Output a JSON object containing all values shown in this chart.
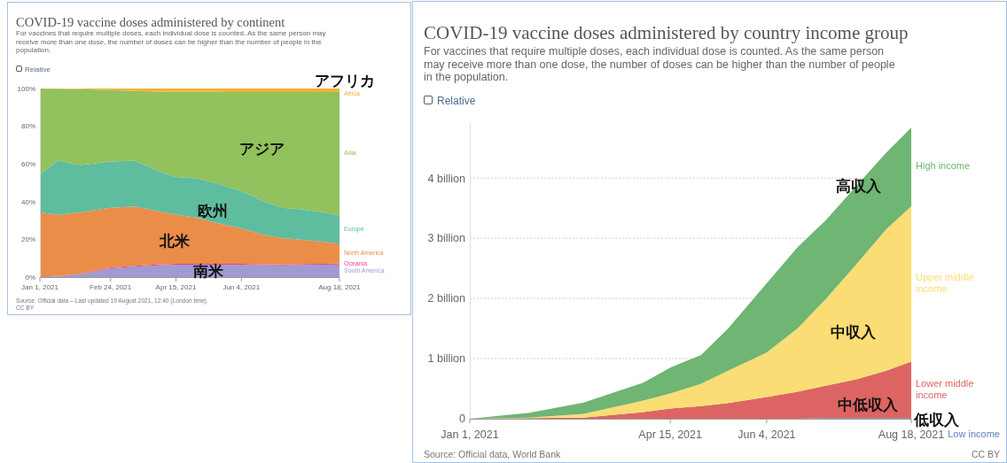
{
  "chart_data": [
    {
      "type": "area",
      "stacked": true,
      "title": "COVID-19 vaccine doses administered by continent",
      "subtitle": "For vaccines that require multiple doses, each individual dose is counted. As the same person may receive more than one dose, the number of doses can be higher than the number of people in the population.",
      "x": [
        "2021-01-01",
        "2021-01-15",
        "2021-02-01",
        "2021-02-24",
        "2021-03-15",
        "2021-04-01",
        "2021-04-15",
        "2021-05-01",
        "2021-05-15",
        "2021-06-04",
        "2021-06-20",
        "2021-07-05",
        "2021-07-20",
        "2021-08-05",
        "2021-08-18"
      ],
      "xlim": [
        "2021-01-01",
        "2021-08-18"
      ],
      "xticks": [
        {
          "value": "2021-01-01",
          "label": "Jan 1, 2021"
        },
        {
          "value": "2021-02-24",
          "label": "Feb 24, 2021"
        },
        {
          "value": "2021-04-15",
          "label": "Apr 15, 2021"
        },
        {
          "value": "2021-06-04",
          "label": "Jun 4, 2021"
        },
        {
          "value": "2021-08-18",
          "label": "Aug 18, 2021"
        }
      ],
      "ylim": [
        0,
        100
      ],
      "yticks": [
        {
          "value": 0,
          "label": "0%"
        },
        {
          "value": 20,
          "label": "20%"
        },
        {
          "value": 40,
          "label": "40%"
        },
        {
          "value": 60,
          "label": "60%"
        },
        {
          "value": 80,
          "label": "80%"
        },
        {
          "value": 100,
          "label": "100%"
        }
      ],
      "series": [
        {
          "name": "South America",
          "color": "#9f9ad1",
          "values": [
            0,
            0.3,
            1.5,
            4.7,
            5.5,
            6.2,
            6.6,
            6.6,
            6.5,
            6.5,
            6.3,
            6.2,
            6.4,
            6.6,
            6.7
          ]
        },
        {
          "name": "Oceania",
          "color": "#e5418e",
          "values": [
            0.3,
            0.3,
            0.3,
            0.5,
            0.5,
            0.5,
            0.5,
            0.5,
            0.5,
            0.5,
            0.5,
            0.5,
            0.5,
            0.5,
            0.5
          ]
        },
        {
          "name": "North America",
          "color": "#e98d49",
          "values": [
            34.1,
            32.4,
            32.6,
            31.5,
            31.5,
            28.3,
            26,
            24.5,
            21.9,
            18.8,
            15.9,
            13.9,
            12.9,
            11.7,
            10.5
          ]
        },
        {
          "name": "Europe",
          "color": "#5ebc9f",
          "values": [
            20.3,
            28.7,
            25,
            24.6,
            24.2,
            21.3,
            20,
            20.7,
            21.1,
            19.8,
            17.9,
            16.1,
            16.1,
            15.6,
            15.1
          ]
        },
        {
          "name": "Asia",
          "color": "#92c15d",
          "values": [
            45.3,
            38.2,
            40.3,
            37.9,
            37,
            42.1,
            45.1,
            45.9,
            48.2,
            52.5,
            57.5,
            61.4,
            62.2,
            63.7,
            65.3
          ]
        },
        {
          "name": "Africa",
          "color": "#f2b134",
          "values": [
            0,
            0.1,
            0.3,
            0.8,
            1.3,
            1.6,
            1.8,
            1.8,
            1.8,
            1.9,
            1.9,
            1.9,
            1.9,
            1.9,
            1.9
          ]
        }
      ],
      "annotations": [
        "Relative",
        "Source: Official data – Last updated 19 August 2021, 12:40 (London time)",
        "CC BY",
        "アフリカ",
        "アジア",
        "欧州",
        "北米",
        "南米"
      ]
    },
    {
      "type": "area",
      "stacked": true,
      "grid": "y",
      "title": "COVID-19 vaccine doses administered by country income group",
      "subtitle": "For vaccines that require multiple doses, each individual dose is counted. As the same person may receive more than one dose, the number of doses can be higher than the number of people in the population.",
      "x": [
        "2021-01-01",
        "2021-02-01",
        "2021-03-01",
        "2021-04-01",
        "2021-04-15",
        "2021-05-01",
        "2021-05-15",
        "2021-06-04",
        "2021-06-20",
        "2021-07-05",
        "2021-07-20",
        "2021-08-05",
        "2021-08-18"
      ],
      "xlim": [
        "2021-01-01",
        "2021-08-18"
      ],
      "xticks": [
        {
          "value": "2021-01-01",
          "label": "Jan 1, 2021"
        },
        {
          "value": "2021-04-15",
          "label": "Apr 15, 2021"
        },
        {
          "value": "2021-06-04",
          "label": "Jun 4, 2021"
        },
        {
          "value": "2021-08-18",
          "label": "Aug 18, 2021"
        }
      ],
      "ylim": [
        0,
        4.9
      ],
      "yticks": [
        0,
        {
          "value": 1,
          "label": "1 billion"
        },
        {
          "value": 2,
          "label": "2 billion"
        },
        {
          "value": 3,
          "label": "3 billion"
        },
        {
          "value": 4,
          "label": "4 billion"
        }
      ],
      "series": [
        {
          "name": "Low income",
          "color": "#5b7fc0",
          "values": [
            0,
            0,
            0,
            0,
            0,
            0,
            0,
            0,
            0,
            0.01,
            0.01,
            0.01,
            0.01
          ]
        },
        {
          "name": "Lower middle income",
          "color": "#dc6563",
          "values": [
            0,
            0.01,
            0.02,
            0.11,
            0.17,
            0.21,
            0.26,
            0.36,
            0.45,
            0.54,
            0.64,
            0.79,
            0.94
          ]
        },
        {
          "name": "Upper middle income",
          "color": "#fbdd75",
          "values": [
            0,
            0.01,
            0.06,
            0.19,
            0.25,
            0.37,
            0.54,
            0.74,
            1.05,
            1.45,
            1.9,
            2.35,
            2.58
          ]
        },
        {
          "name": "High income",
          "color": "#6fb573",
          "values": [
            0,
            0.08,
            0.19,
            0.3,
            0.43,
            0.48,
            0.7,
            1.15,
            1.35,
            1.31,
            1.3,
            1.27,
            1.31
          ]
        }
      ],
      "annotations": [
        "Relative",
        "Source: Official data, World Bank",
        "CC BY",
        "高収入",
        "中収入",
        "中低収入",
        "低収入"
      ]
    }
  ]
}
